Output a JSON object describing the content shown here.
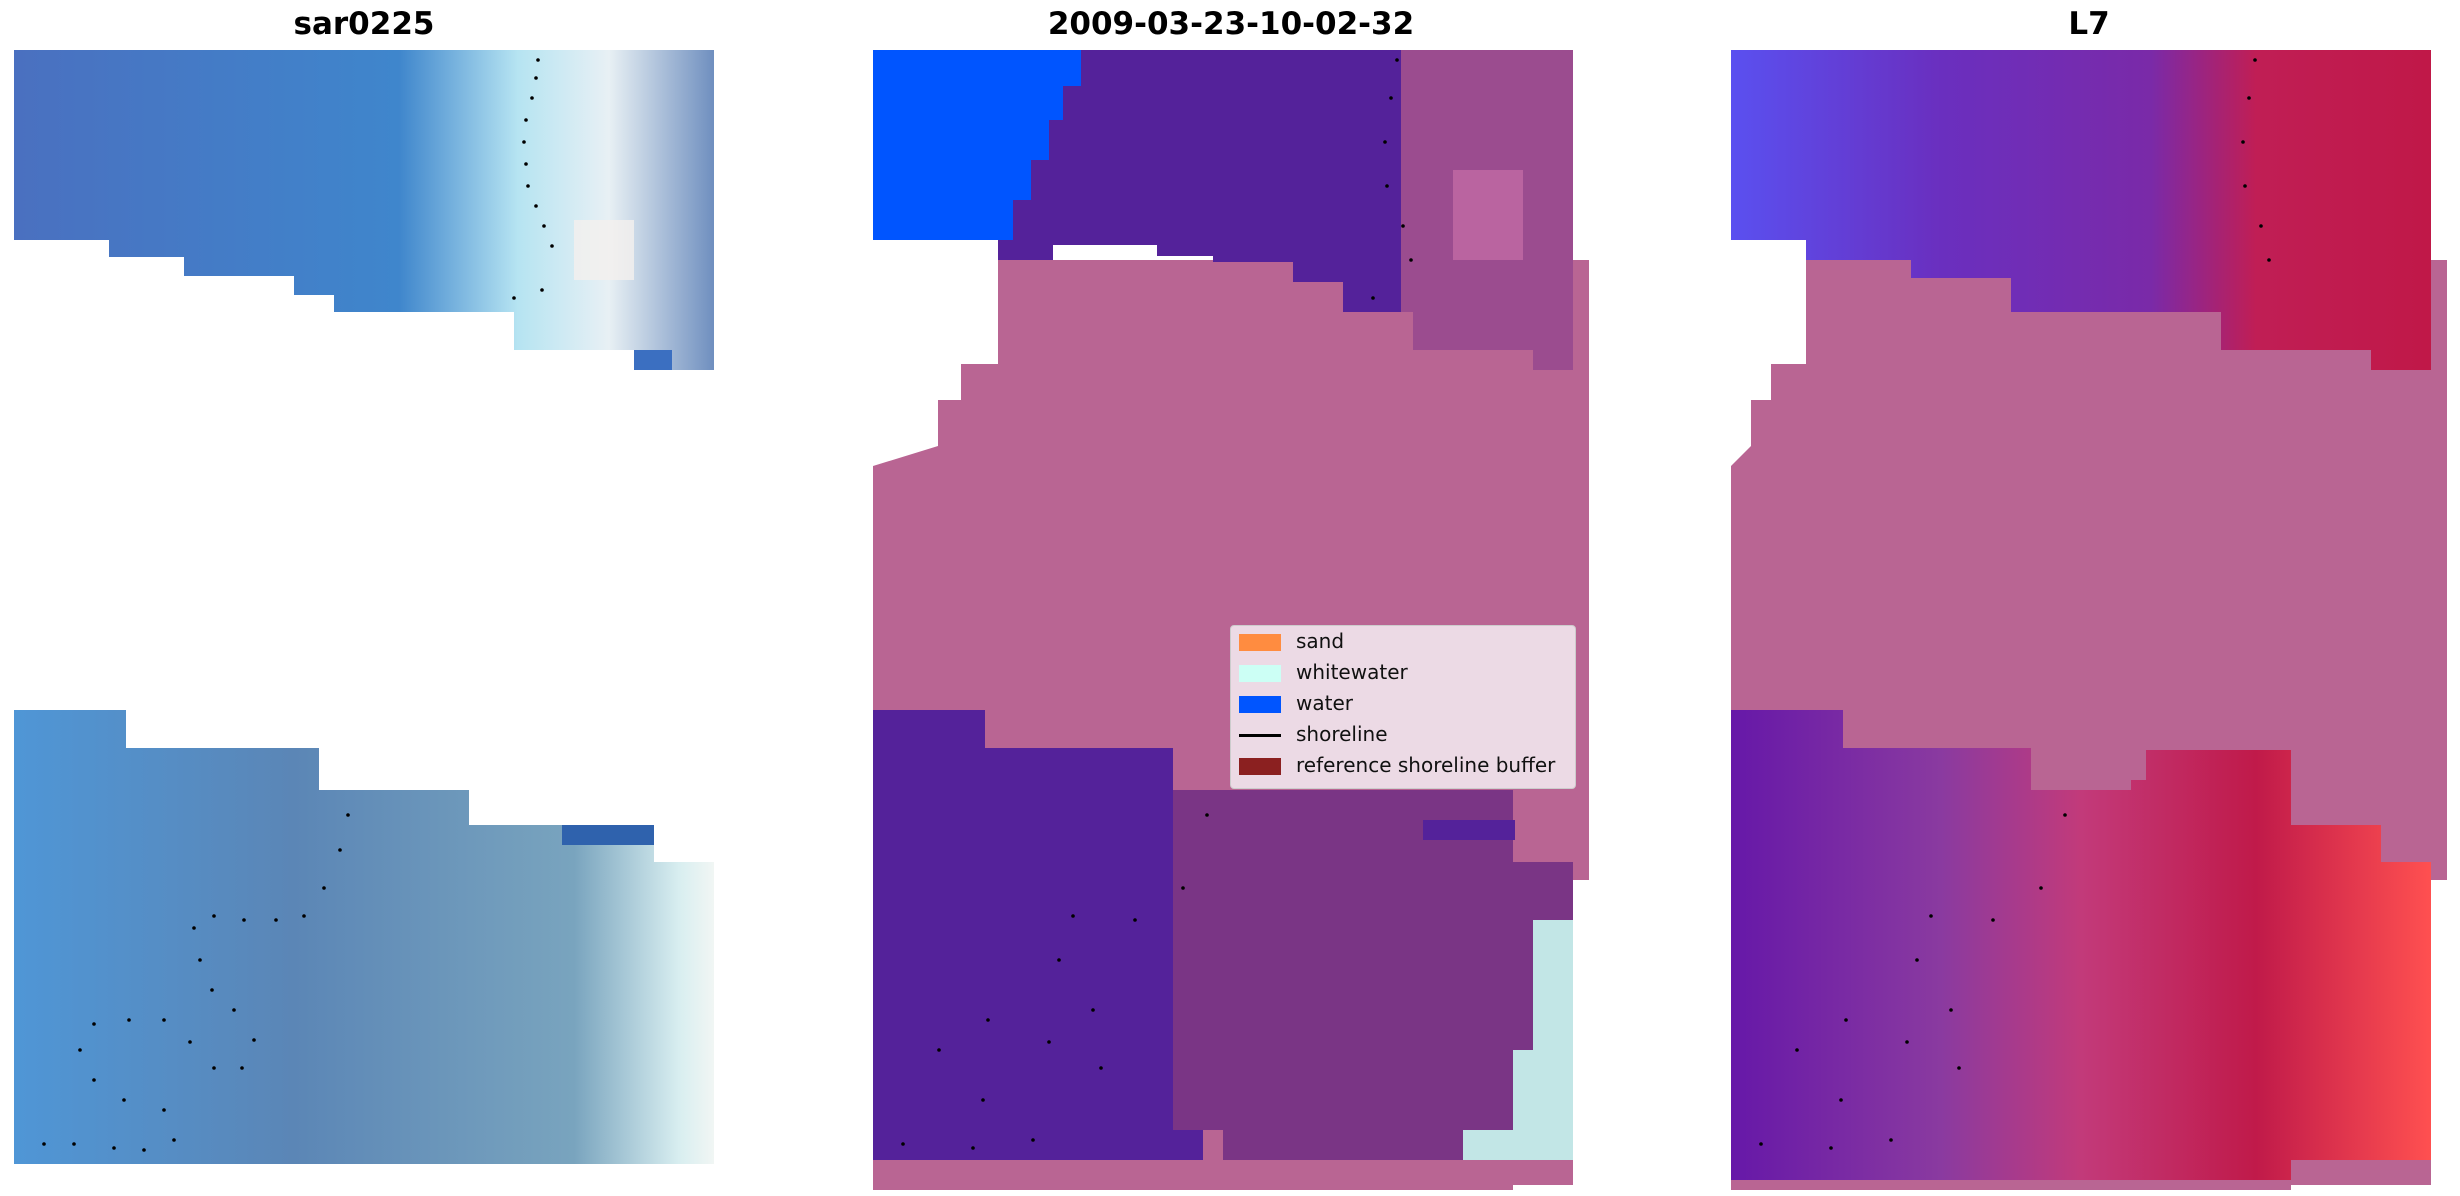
{
  "panels": [
    {
      "title": "sar0225"
    },
    {
      "title": "2009-03-23-10-02-32"
    },
    {
      "title": "L7"
    }
  ],
  "legend": {
    "items": [
      {
        "label": "sand",
        "type": "patch",
        "color": "#ff8c40"
      },
      {
        "label": "whitewater",
        "type": "patch",
        "color": "#ccfff5"
      },
      {
        "label": "water",
        "type": "patch",
        "color": "#0055ff"
      },
      {
        "label": "shoreline",
        "type": "line",
        "color": "#000000"
      },
      {
        "label": "reference shoreline buffer",
        "type": "patch",
        "color": "#8b2020"
      }
    ]
  },
  "colors": {
    "rgb_water": "#4a7fc4",
    "class_water_overlay": "#54229a",
    "class_sand_overlay": "#b96593",
    "class_pure_water": "#0055ff",
    "mndwi_low": "#5a3fd8",
    "mndwi_high": "#c01845"
  }
}
